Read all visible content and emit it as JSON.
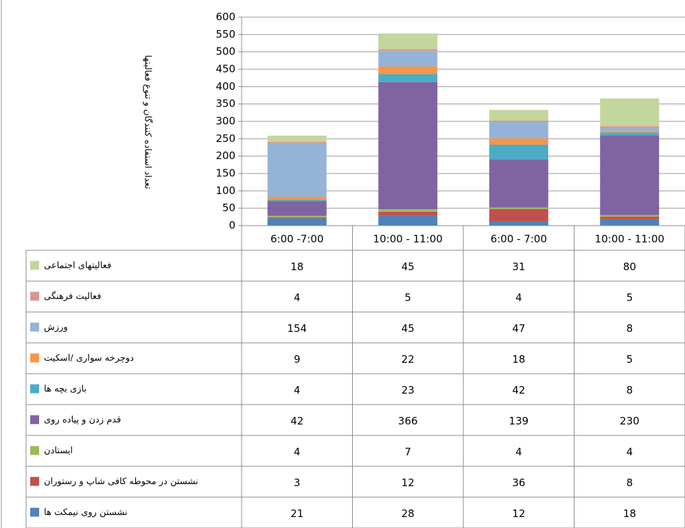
{
  "chart_data": {
    "type": "stacked_bar",
    "y_label": "تعداد استفاده کنندگان و تنوع فعالیتها",
    "categories": [
      "6:00 -7:00",
      "10:00 - 11:00",
      "6:00 - 7:00",
      "10:00 - 11:00"
    ],
    "ylim": [
      0,
      600
    ],
    "yticks": [
      0,
      50,
      100,
      150,
      200,
      250,
      300,
      350,
      400,
      450,
      500,
      550,
      600
    ],
    "grid": true,
    "series": [
      {
        "name": "فعالیتهای اجتماعی",
        "color": "#c3d69b",
        "values": [
          18,
          45,
          31,
          80
        ]
      },
      {
        "name": "فعالیت فرهنگی",
        "color": "#d99694",
        "values": [
          4,
          5,
          4,
          5
        ]
      },
      {
        "name": "ورزش",
        "color": "#95b3d7",
        "values": [
          154,
          45,
          47,
          8
        ]
      },
      {
        "name": "دوچرخه سواری /اسکیت",
        "color": "#f79646",
        "values": [
          9,
          22,
          18,
          5
        ]
      },
      {
        "name": "بازی بچه ها",
        "color": "#4bacc6",
        "values": [
          4,
          23,
          42,
          8
        ]
      },
      {
        "name": "قدم زدن و پیاده روی",
        "color": "#8064a2",
        "values": [
          42,
          366,
          139,
          230
        ]
      },
      {
        "name": "ایستادن",
        "color": "#9bbb59",
        "values": [
          4,
          7,
          4,
          4
        ]
      },
      {
        "name": "نشستن در محوطه کافی شاپ و رستوران",
        "color": "#c0504d",
        "values": [
          3,
          12,
          36,
          8
        ]
      },
      {
        "name": "نشستن روی نیمکت ها",
        "color": "#4f81bd",
        "values": [
          21,
          28,
          12,
          18
        ]
      }
    ]
  }
}
